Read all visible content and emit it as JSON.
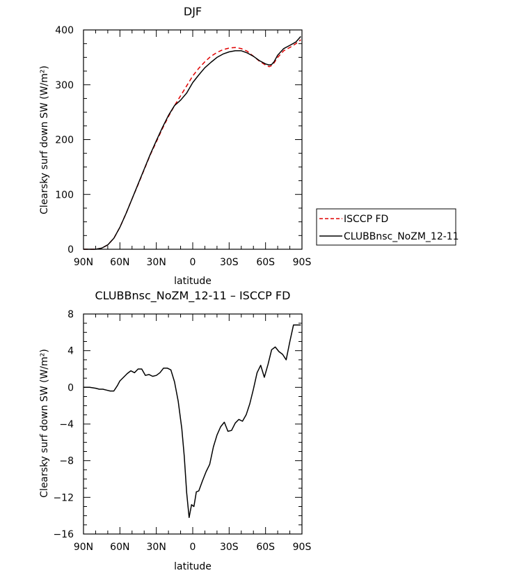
{
  "chart_data": [
    {
      "type": "line",
      "title": "DJF",
      "xlabel": "latitude",
      "ylabel": "Clearsky surf down SW (W/m²)",
      "xlim": [
        -90,
        90
      ],
      "ylim": [
        0,
        400
      ],
      "xticks": [
        -90,
        -60,
        -30,
        0,
        30,
        60,
        90
      ],
      "xticklabels": [
        "90N",
        "60N",
        "30N",
        "0",
        "30S",
        "60S",
        "90S"
      ],
      "yticks": [
        0,
        100,
        200,
        300,
        400
      ],
      "yticklabels": [
        "0",
        "100",
        "200",
        "300",
        "400"
      ],
      "legend": "right",
      "series": [
        {
          "name": "ISCCP FD",
          "color": "#e00000",
          "dash": "dashed",
          "x": [
            -90,
            -85,
            -80,
            -75,
            -70,
            -65,
            -60,
            -55,
            -50,
            -45,
            -40,
            -35,
            -30,
            -25,
            -20,
            -15,
            -10,
            -5,
            0,
            5,
            10,
            15,
            20,
            25,
            30,
            35,
            40,
            45,
            50,
            55,
            60,
            63,
            65,
            67,
            70,
            75,
            80,
            85,
            89
          ],
          "y": [
            0,
            0,
            0,
            2,
            8,
            20,
            40,
            65,
            92,
            118,
            145,
            172,
            196,
            220,
            242,
            262,
            280,
            298,
            316,
            330,
            342,
            352,
            359,
            364,
            367,
            368,
            366,
            361,
            352,
            343,
            336,
            333,
            335,
            340,
            350,
            362,
            368,
            375,
            382
          ]
        },
        {
          "name": "CLUBBnsc_NoZM_12-11",
          "color": "#000000",
          "dash": "solid",
          "x": [
            -90,
            -85,
            -80,
            -75,
            -70,
            -65,
            -60,
            -55,
            -50,
            -45,
            -40,
            -35,
            -30,
            -25,
            -20,
            -15,
            -10,
            -5,
            0,
            5,
            10,
            15,
            20,
            25,
            30,
            35,
            40,
            45,
            50,
            55,
            60,
            63,
            65,
            67,
            70,
            75,
            80,
            85,
            89
          ],
          "y": [
            0,
            0,
            0,
            2,
            8,
            20,
            40,
            65,
            92,
            119,
            146,
            173,
            198,
            222,
            244,
            262,
            272,
            285,
            304,
            318,
            331,
            341,
            350,
            356,
            360,
            362,
            362,
            358,
            352,
            344,
            338,
            336,
            337,
            342,
            354,
            366,
            372,
            378,
            388
          ]
        }
      ]
    },
    {
      "type": "line",
      "title": "CLUBBnsc_NoZM_12-11 – ISCCP FD",
      "xlabel": "latitude",
      "ylabel": "Clearsky surf down SW (W/m²)",
      "xlim": [
        -90,
        90
      ],
      "ylim": [
        -16,
        8
      ],
      "xticks": [
        -90,
        -60,
        -30,
        0,
        30,
        60,
        90
      ],
      "xticklabels": [
        "90N",
        "60N",
        "30N",
        "0",
        "30S",
        "60S",
        "90S"
      ],
      "yticks": [
        -16,
        -12,
        -8,
        -4,
        0,
        4,
        8
      ],
      "yticklabels": [
        "−16",
        "−12",
        "−8",
        "−4",
        "0",
        "4",
        "8"
      ],
      "series": [
        {
          "color": "#000000",
          "x": [
            -90,
            -85,
            -80,
            -77,
            -74,
            -71,
            -68,
            -65,
            -62,
            -60,
            -57,
            -54,
            -51,
            -48,
            -45,
            -42,
            -39,
            -36,
            -33,
            -30,
            -27,
            -24,
            -21,
            -18,
            -15,
            -12,
            -9,
            -7,
            -5,
            -3,
            -1,
            1,
            3,
            5,
            8,
            11,
            14,
            17,
            20,
            23,
            26,
            29,
            32,
            35,
            38,
            41,
            44,
            47,
            50,
            53,
            56,
            59,
            62,
            65,
            68,
            71,
            74,
            77,
            80,
            83,
            86,
            89
          ],
          "y": [
            0,
            0,
            -0.1,
            -0.2,
            -0.2,
            -0.3,
            -0.4,
            -0.4,
            0.2,
            0.7,
            1.1,
            1.5,
            1.8,
            1.6,
            2.0,
            2.0,
            1.3,
            1.4,
            1.2,
            1.3,
            1.6,
            2.1,
            2.1,
            1.9,
            0.6,
            -1.5,
            -4.5,
            -7.5,
            -11.5,
            -14.2,
            -12.8,
            -13.0,
            -11.4,
            -11.3,
            -10.2,
            -9.2,
            -8.4,
            -6.5,
            -5.2,
            -4.3,
            -3.8,
            -4.8,
            -4.7,
            -3.9,
            -3.5,
            -3.7,
            -3.0,
            -1.8,
            -0.2,
            1.6,
            2.4,
            1.1,
            2.5,
            4.1,
            4.4,
            3.9,
            3.6,
            3.0,
            5.0,
            6.8,
            6.8,
            6.8
          ]
        }
      ]
    }
  ]
}
